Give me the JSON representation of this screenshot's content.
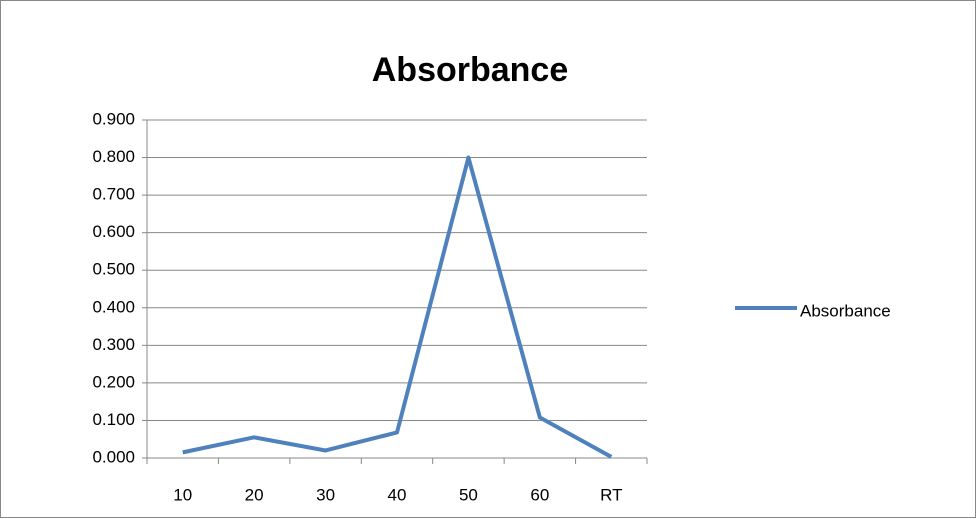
{
  "chart_data": {
    "type": "line",
    "title": "Absorbance",
    "categories": [
      "10",
      "20",
      "30",
      "40",
      "50",
      "60",
      "RT"
    ],
    "series": [
      {
        "name": "Absorbance",
        "color": "#4f81bd",
        "values": [
          0.015,
          0.055,
          0.02,
          0.068,
          0.8,
          0.108,
          0.003
        ]
      }
    ],
    "ylim": [
      0,
      0.9
    ],
    "yticks": [
      {
        "value": 0,
        "label": "0.000"
      },
      {
        "value": 0.1,
        "label": "0.100"
      },
      {
        "value": 0.2,
        "label": "0.200"
      },
      {
        "value": 0.3,
        "label": "0.300"
      },
      {
        "value": 0.4,
        "label": "0.400"
      },
      {
        "value": 0.5,
        "label": "0.500"
      },
      {
        "value": 0.6,
        "label": "0.600"
      },
      {
        "value": 0.7,
        "label": "0.700"
      },
      {
        "value": 0.8,
        "label": "0.800"
      },
      {
        "value": 0.9,
        "label": "0.900"
      }
    ],
    "grid": true,
    "legend": "right"
  }
}
